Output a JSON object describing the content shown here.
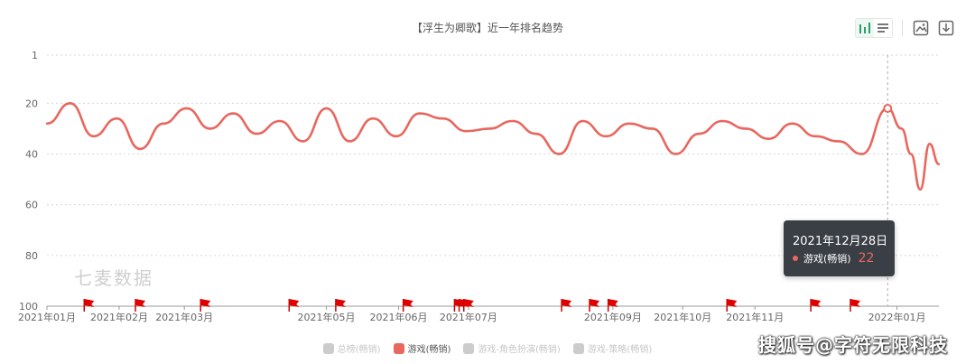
{
  "title": "【浮生为卿歌】近一年排名趋势",
  "watermark": "七麦数据",
  "source_credit": "搜狐号@字符无限科技",
  "toolbar": {
    "icons": [
      "bar-chart-icon",
      "list-icon",
      "image-save-icon",
      "download-icon"
    ]
  },
  "tooltip": {
    "date": "2021年12月28日",
    "series": "游戏(畅销)",
    "value": "22"
  },
  "legend": [
    {
      "label": "总榜(畅销)",
      "color": "#cccccc",
      "active": false
    },
    {
      "label": "游戏(畅销)",
      "color": "#e8675e",
      "active": true
    },
    {
      "label": "游戏-角色扮演(畅销)",
      "color": "#cccccc",
      "active": false
    },
    {
      "label": "游戏-策略(畅销)",
      "color": "#cccccc",
      "active": false
    }
  ],
  "chart_data": {
    "type": "line",
    "title": "【浮生为卿歌】近一年排名趋势",
    "y_inverted": true,
    "ylim": [
      1,
      100
    ],
    "y_ticks": [
      1,
      20,
      40,
      60,
      80,
      100
    ],
    "x_ticks": [
      "2021年01月",
      "2021年02月",
      "2021年03月",
      "2021年05月",
      "2021年06月",
      "2021年07月",
      "2021年09月",
      "2021年10月",
      "2021年11月",
      "2022年01月"
    ],
    "series": [
      {
        "name": "游戏(畅销)",
        "color": "#e8675e",
        "x": [
          "2021-01-01",
          "2021-01-11",
          "2021-01-21",
          "2021-01-31",
          "2021-02-10",
          "2021-02-20",
          "2021-03-02",
          "2021-03-12",
          "2021-03-22",
          "2021-04-01",
          "2021-04-11",
          "2021-04-21",
          "2021-05-01",
          "2021-05-11",
          "2021-05-21",
          "2021-05-31",
          "2021-06-10",
          "2021-06-20",
          "2021-06-30",
          "2021-07-10",
          "2021-07-20",
          "2021-07-30",
          "2021-08-09",
          "2021-08-19",
          "2021-08-29",
          "2021-09-08",
          "2021-09-18",
          "2021-09-28",
          "2021-10-08",
          "2021-10-18",
          "2021-10-28",
          "2021-11-07",
          "2021-11-17",
          "2021-11-27",
          "2021-12-07",
          "2021-12-17",
          "2021-12-28",
          "2022-01-03",
          "2022-01-07",
          "2022-01-11",
          "2022-01-15",
          "2022-01-19"
        ],
        "values": [
          28,
          20,
          33,
          26,
          38,
          28,
          22,
          30,
          24,
          32,
          27,
          35,
          22,
          35,
          26,
          33,
          24,
          26,
          31,
          30,
          27,
          32,
          40,
          27,
          33,
          28,
          30,
          40,
          32,
          27,
          30,
          34,
          28,
          33,
          35,
          40,
          22,
          30,
          40,
          54,
          36,
          44
        ]
      }
    ],
    "flags": [
      "2021-01-17",
      "2021-02-08",
      "2021-03-08",
      "2021-04-15",
      "2021-05-05",
      "2021-06-03",
      "2021-06-25",
      "2021-06-27",
      "2021-06-29",
      "2021-08-10",
      "2021-08-22",
      "2021-08-30",
      "2021-10-20",
      "2021-11-25",
      "2021-12-12"
    ],
    "crosshair_x": "2021-12-28",
    "grid": true
  }
}
